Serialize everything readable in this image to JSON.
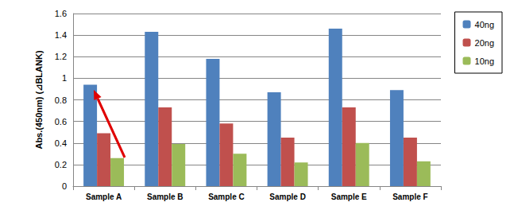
{
  "chart_data": {
    "type": "bar",
    "y_label": "Abs.(450nm) (⊿BLANK)",
    "categories": [
      "Sample A",
      "Sample B",
      "Sample C",
      "Sample D",
      "Sample E",
      "Sample F"
    ],
    "series": [
      {
        "name": "40ng",
        "color": "#4f81bd",
        "values": [
          0.94,
          1.43,
          1.18,
          0.87,
          1.46,
          0.89
        ]
      },
      {
        "name": "20ng",
        "color": "#c0504d",
        "values": [
          0.49,
          0.73,
          0.58,
          0.45,
          0.73,
          0.45
        ]
      },
      {
        "name": "10ng",
        "color": "#9bbb59",
        "values": [
          0.26,
          0.39,
          0.3,
          0.22,
          0.4,
          0.23
        ]
      }
    ],
    "ylim": [
      0,
      1.6
    ],
    "yticks": [
      0,
      0.2,
      0.4,
      0.6,
      0.8,
      1,
      1.2,
      1.4,
      1.6
    ],
    "grid": true,
    "legend": "upper right"
  }
}
